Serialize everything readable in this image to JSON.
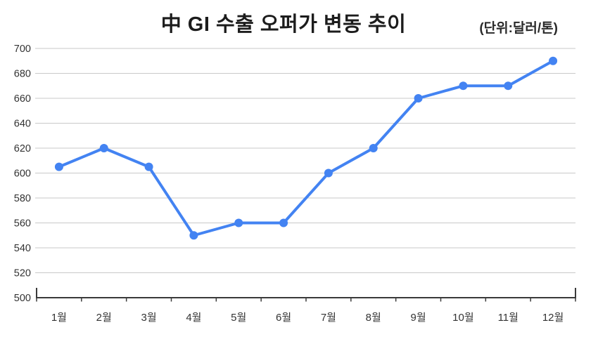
{
  "chart_data": {
    "type": "line",
    "title": "中 GI 수출 오퍼가 변동 추이",
    "unit_label": "(단위:달러/톤)",
    "categories": [
      "1월",
      "2월",
      "3월",
      "4월",
      "5월",
      "6월",
      "7월",
      "8월",
      "9월",
      "10월",
      "11월",
      "12월"
    ],
    "series": [
      {
        "name": "GI 수출 오퍼가",
        "values": [
          605,
          620,
          605,
          550,
          560,
          560,
          600,
          620,
          660,
          670,
          670,
          690
        ]
      }
    ],
    "xlabel": "",
    "ylabel": "",
    "ylim": [
      500,
      700
    ],
    "ytick_step": 20,
    "yticks": [
      500,
      520,
      540,
      560,
      580,
      600,
      620,
      640,
      660,
      680,
      700
    ],
    "grid": "horizontal-only",
    "legend": "none",
    "style": {
      "line_color": "#4383f2",
      "marker_color": "#4383f2",
      "grid_color": "#c9c9c9",
      "axis_color": "#3a3a3a",
      "tick_label_color": "#333333",
      "title_color": "#1c1c1c",
      "background_color": "#ffffff"
    }
  }
}
